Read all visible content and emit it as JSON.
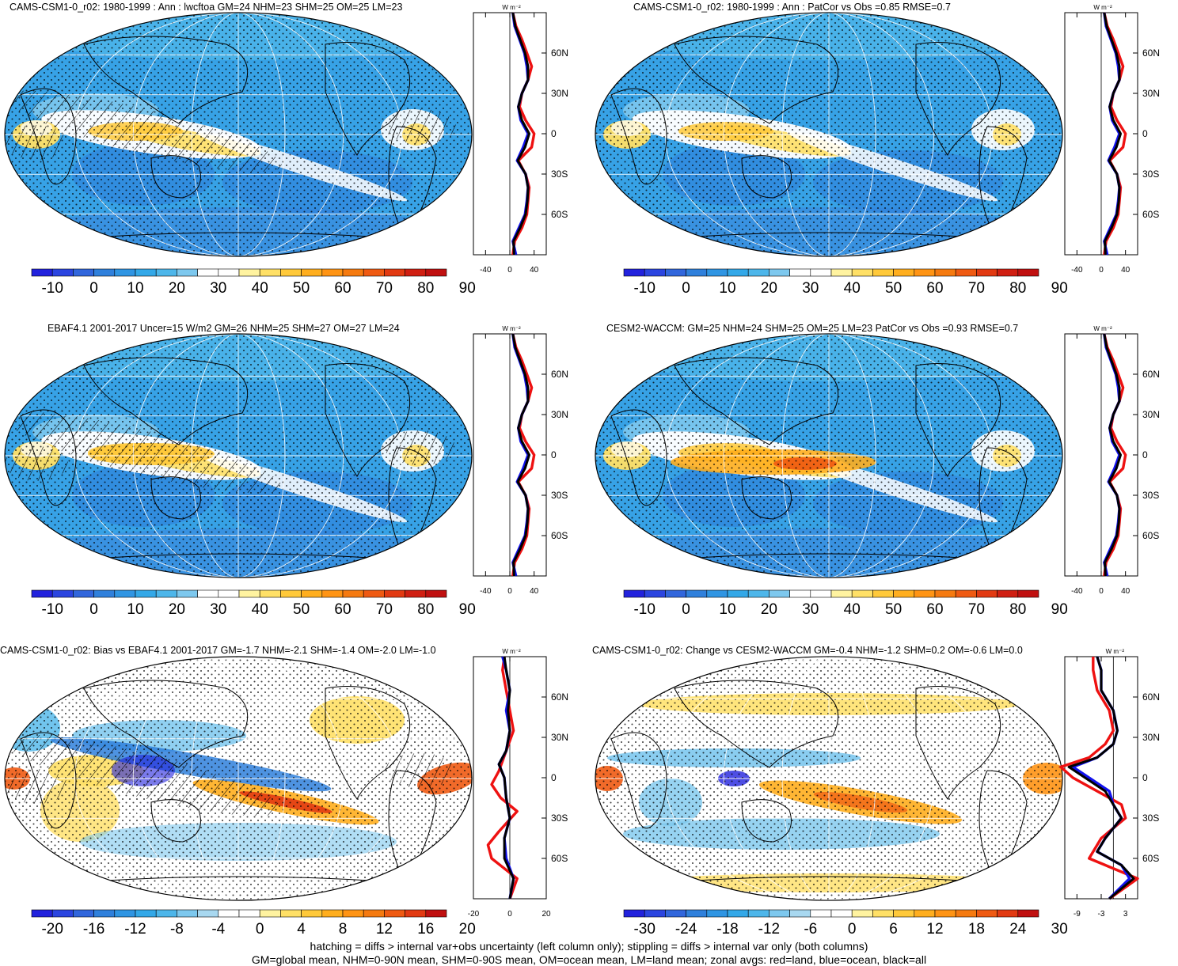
{
  "panels": [
    {
      "title": "CAMS-CSM1-0_r02: 1980-1999 : Ann : lwcftoa GM=24 NHM=23 SHM=25 OM=25 LM=23",
      "kind": "mean",
      "hatch": true,
      "stipple": true,
      "colorbar": {
        "labels": [
          "-10",
          "0",
          "10",
          "20",
          "30",
          "40",
          "50",
          "60",
          "70",
          "80",
          "90"
        ]
      },
      "zonal": {
        "ylabel_unit": "W m⁻²",
        "xticks": [
          "-40",
          "0",
          "40"
        ],
        "yticks": [
          "60N",
          "30N",
          "0",
          "30S",
          "60S"
        ]
      }
    },
    {
      "title": "CAMS-CSM1-0_r02: 1980-1999 : Ann : PatCor vs Obs =0.85 RMSE=0.7",
      "kind": "mean",
      "hatch": false,
      "stipple": true,
      "colorbar": {
        "labels": [
          "-10",
          "0",
          "10",
          "20",
          "30",
          "40",
          "50",
          "60",
          "70",
          "80",
          "90"
        ]
      },
      "zonal": {
        "ylabel_unit": "W m⁻²",
        "xticks": [
          "-40",
          "0",
          "40"
        ],
        "yticks": [
          "60N",
          "30N",
          "0",
          "30S",
          "60S"
        ]
      }
    },
    {
      "title": "EBAF4.1 2001-2017 Uncer=15 W/m2 GM=26 NHM=25 SHM=27 OM=27 LM=24",
      "kind": "mean",
      "hatch": true,
      "stipple": true,
      "colorbar": {
        "labels": [
          "-10",
          "0",
          "10",
          "20",
          "30",
          "40",
          "50",
          "60",
          "70",
          "80",
          "90"
        ]
      },
      "zonal": {
        "ylabel_unit": "W m⁻²",
        "xticks": [
          "-40",
          "0",
          "40"
        ],
        "yticks": [
          "60N",
          "30N",
          "0",
          "30S",
          "60S"
        ]
      }
    },
    {
      "title": "CESM2-WACCM: GM=25 NHM=24 SHM=25 OM=25 LM=23 PatCor vs Obs =0.93 RMSE=0.7",
      "kind": "mean",
      "hatch": false,
      "stipple": true,
      "colorbar": {
        "labels": [
          "-10",
          "0",
          "10",
          "20",
          "30",
          "40",
          "50",
          "60",
          "70",
          "80",
          "90"
        ]
      },
      "zonal": {
        "ylabel_unit": "W m⁻²",
        "xticks": [
          "-40",
          "0",
          "40"
        ],
        "yticks": [
          "60N",
          "30N",
          "0",
          "30S",
          "60S"
        ]
      }
    },
    {
      "title": "CAMS-CSM1-0_r02: Bias vs EBAF4.1 2001-2017 GM=-1.7 NHM=-2.1 SHM=-1.4 OM=-2.0 LM=-1.0",
      "kind": "diff",
      "hatch": true,
      "stipple": true,
      "colorbar": {
        "labels": [
          "-20",
          "-16",
          "-12",
          "-8",
          "-4",
          "0",
          "4",
          "8",
          "12",
          "16",
          "20"
        ]
      },
      "zonal": {
        "ylabel_unit": "W m⁻²",
        "xticks": [
          "-20",
          "0",
          "20"
        ],
        "yticks": [
          "60N",
          "30N",
          "0",
          "30S",
          "60S"
        ]
      }
    },
    {
      "title": "CAMS-CSM1-0_r02: Change vs CESM2-WACCM GM=-0.4 NHM=-1.2 SHM=0.2 OM=-0.6 LM=0.0",
      "kind": "diff",
      "hatch": false,
      "stipple": true,
      "colorbar": {
        "labels": [
          "-30",
          "-24",
          "-18",
          "-12",
          "-6",
          "0",
          "6",
          "12",
          "18",
          "24",
          "30"
        ]
      },
      "zonal": {
        "ylabel_unit": "W m⁻²",
        "xticks": [
          "-9",
          "-3",
          "3"
        ],
        "yticks": [
          "60N",
          "30N",
          "0",
          "30S",
          "60S"
        ]
      }
    }
  ],
  "palette": {
    "mean": [
      "#2222dd",
      "#2b45e0",
      "#3166dc",
      "#2f80dc",
      "#2f95e3",
      "#33a8e8",
      "#4db6ea",
      "#7dc8ee",
      "#ffffff",
      "#ffffff",
      "#fff3a0",
      "#ffe066",
      "#ffc93a",
      "#ffae1e",
      "#ff9414",
      "#f57a10",
      "#ef5a12",
      "#e23a12",
      "#d01f12",
      "#c01010"
    ],
    "diff": [
      "#2222dd",
      "#2b45e0",
      "#3166dc",
      "#2f80dc",
      "#2f95e3",
      "#33a8e8",
      "#4db6ea",
      "#7dc8ee",
      "#a8d8f0",
      "#ffffff",
      "#ffffff",
      "#fff3a0",
      "#ffe066",
      "#ffc93a",
      "#ffae1e",
      "#ff9414",
      "#f57a10",
      "#ef5a12",
      "#e23a12",
      "#c01010"
    ],
    "line_land": "#ee1111",
    "line_ocean": "#1111ee",
    "line_all": "#000000"
  },
  "footnote": {
    "line1": "hatching = diffs > internal var+obs uncertainty (left column only); stippling = diffs > internal var only (both columns)",
    "line2": "GM=global mean, NHM=0-90N mean, SHM=0-90S mean, OM=ocean mean, LM=land mean; zonal avgs: red=land, blue=ocean, black=all"
  }
}
